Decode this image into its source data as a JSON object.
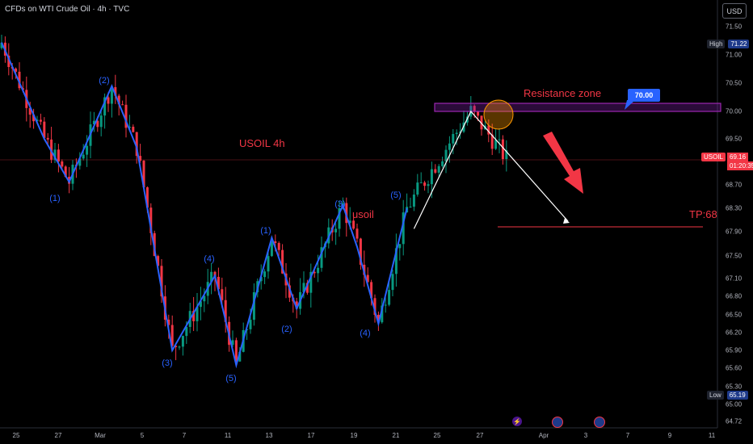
{
  "header": {
    "title": "CFDs on WTI Crude Oil · 4h · TVC",
    "currency_button": "USD"
  },
  "price_scale": {
    "ticks": [
      "71.50",
      "71.00",
      "70.50",
      "70.00",
      "69.50",
      "68.70",
      "68.30",
      "67.90",
      "67.50",
      "67.10",
      "66.80",
      "66.50",
      "66.20",
      "65.90",
      "65.60",
      "65.30",
      "65.00",
      "64.72"
    ],
    "high_tag": "High",
    "high_value": "71.22",
    "low_tag": "Low",
    "low_value": "65.19",
    "current_symbol": "USOIL",
    "current_price": "69.16",
    "countdown": "01:20:35"
  },
  "time_scale": {
    "ticks": [
      "25",
      "27",
      "Mar",
      "5",
      "7",
      "11",
      "13",
      "17",
      "19",
      "21",
      "25",
      "27",
      "Apr",
      "3",
      "7",
      "9",
      "11"
    ]
  },
  "annotations": {
    "title_text": "USOIL 4h",
    "usoil_text": "usoil",
    "resistance_text": "Resistance zone",
    "resistance_callout": "70.00",
    "target_text": "TP:68",
    "waves": [
      "(2)",
      "(1)",
      "(3)",
      "(4)",
      "(5)",
      "(1)",
      "(2)",
      "(3)",
      "(4)",
      "(5)"
    ]
  },
  "colors": {
    "up": "#089981",
    "down": "#f23645",
    "wave_line": "#2962ff",
    "zone": "#7b1fa2",
    "background": "#000000"
  },
  "events": [
    "lightning-icon",
    "us-flag-icon",
    "us-flag-icon"
  ],
  "chart_data": {
    "type": "candlestick",
    "title": "CFDs on WTI Crude Oil · 4h · TVC",
    "symbol": "USOIL",
    "timeframe": "4h",
    "ylim": [
      64.72,
      71.5
    ],
    "x_ticks": [
      "25",
      "27",
      "Mar",
      "5",
      "7",
      "11",
      "13",
      "17",
      "19",
      "21",
      "25",
      "27",
      "Apr",
      "3",
      "7",
      "9",
      "11"
    ],
    "high": 71.22,
    "low": 65.19,
    "last": 69.16,
    "resistance_level": 70.0,
    "target_level": 68.0,
    "wave_path": [
      [
        0,
        71.22
      ],
      [
        12,
        69.5
      ],
      [
        19,
        68.75
      ],
      [
        31,
        70.45
      ],
      [
        38,
        69.35
      ],
      [
        48,
        65.9
      ],
      [
        60,
        67.15
      ],
      [
        66,
        65.65
      ],
      [
        76,
        67.8
      ],
      [
        83,
        66.6
      ],
      [
        96,
        68.35
      ],
      [
        100,
        67.65
      ],
      [
        106,
        66.35
      ],
      [
        114,
        68.3
      ]
    ],
    "projection": [
      [
        116,
        67.95
      ],
      [
        132,
        70.0
      ],
      [
        147,
        68.1
      ]
    ]
  }
}
